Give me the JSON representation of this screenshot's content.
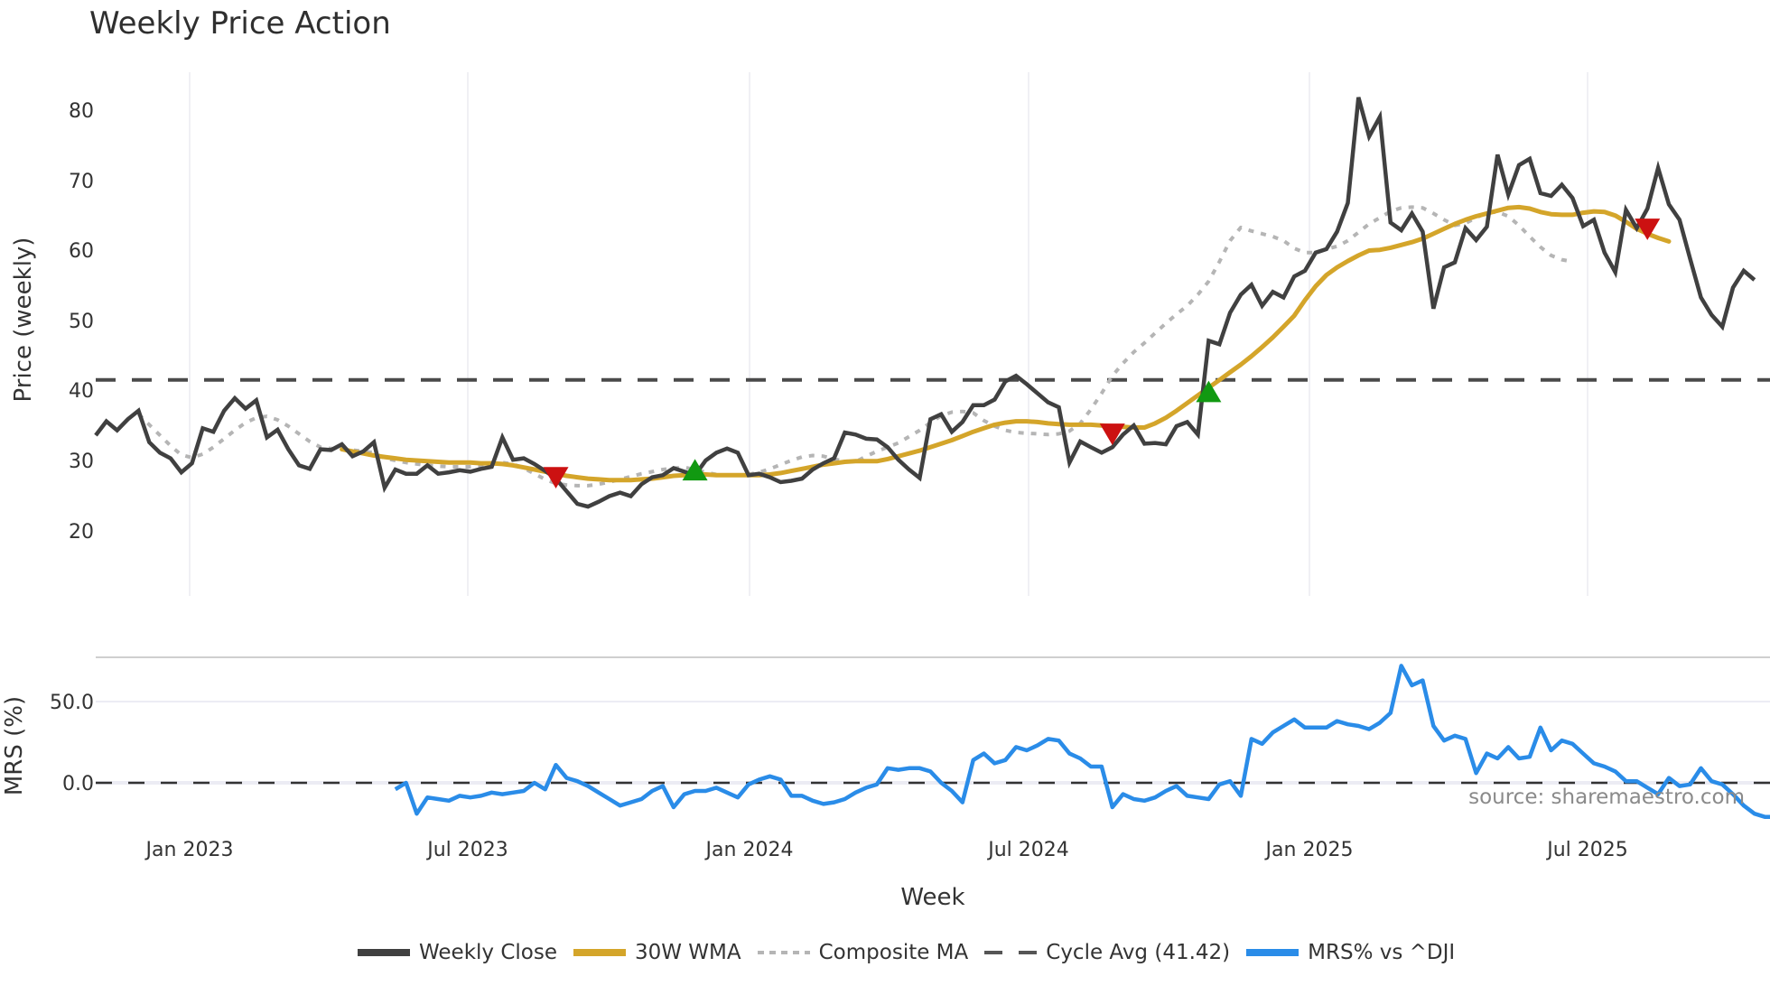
{
  "title": "Weekly Price Action",
  "chart_data": [
    {
      "type": "line",
      "panel": "price",
      "title": "Weekly Price Action",
      "xlabel": "Week",
      "ylabel": "Price (weekly)",
      "ylim": [
        20,
        85
      ],
      "yticks": [
        20,
        30,
        40,
        50,
        60,
        70,
        80
      ],
      "xticks": [
        "Jan 2023",
        "Jul 2023",
        "Jan 2024",
        "Jul 2024",
        "Jan 2025",
        "Jul 2025"
      ],
      "grid": "vertical",
      "x_start_week_index": 0,
      "x_note": "weekly index; index 9 ≈ Jan 2023, index 35 ≈ Jul 2023, index 61 ≈ Jan 2024, index 87 ≈ Jul 2024, index 113 ≈ Jan 2025, index 139 ≈ Jul 2025",
      "series": [
        {
          "name": "Weekly Close",
          "color": "#404040",
          "style": "solid",
          "start_index": 0,
          "values": [
            33.5,
            35.5,
            34.2,
            35.8,
            37,
            32.5,
            31,
            30.2,
            28.2,
            29.5,
            34.5,
            34,
            37,
            38.8,
            37.3,
            38.5,
            33.2,
            34.3,
            31.5,
            29.2,
            28.7,
            31.5,
            31.4,
            32.2,
            30.5,
            31.2,
            32.5,
            26,
            28.6,
            28,
            28,
            29.2,
            28,
            28.2,
            28.5,
            28.3,
            28.7,
            29,
            33.2,
            30,
            30.2,
            29.4,
            28.4,
            27.3,
            25.5,
            23.7,
            23.3,
            24,
            24.8,
            25.3,
            24.8,
            26.5,
            27.5,
            27.8,
            28.8,
            28.3,
            27.8,
            29.9,
            31,
            31.6,
            31,
            27.8,
            28,
            27.5,
            26.8,
            27,
            27.3,
            28.6,
            29.5,
            30.2,
            33.9,
            33.6,
            33,
            32.9,
            31.8,
            30,
            28.6,
            27.4,
            35.8,
            36.5,
            34,
            35.4,
            37.8,
            37.8,
            38.6,
            41.2,
            42,
            40.8,
            39.5,
            38.2,
            37.5,
            29.6,
            32.6,
            31.8,
            31,
            31.8,
            33.6,
            34.9,
            32.3,
            32.4,
            32.2,
            34.8,
            35.4,
            33.6,
            47,
            46.5,
            51,
            53.6,
            55,
            52,
            54,
            53.2,
            56.2,
            57,
            59.6,
            60.1,
            62.6,
            66.7,
            81.8,
            76.2,
            79,
            63.9,
            62.8,
            65.2,
            62.6,
            51.6,
            57.5,
            58.2,
            63.1,
            61.4,
            63.3,
            73.6,
            67.9,
            72.1,
            73,
            68.1,
            67.7,
            69.3,
            67.4,
            63.4,
            64.3,
            59.6,
            56.8,
            65.7,
            63.1,
            65.9,
            71.7,
            66.5,
            64.3,
            58.7,
            53.2,
            50.7,
            49,
            54.6,
            57,
            55.7
          ]
        },
        {
          "name": "30W WMA",
          "color": "#D4A52A",
          "style": "solid",
          "start_index": 23,
          "values": [
            31.5,
            31.2,
            30.9,
            30.6,
            30.4,
            30.2,
            30.0,
            29.9,
            29.8,
            29.7,
            29.6,
            29.6,
            29.6,
            29.5,
            29.5,
            29.4,
            29.2,
            28.9,
            28.6,
            28.3,
            28.0,
            27.7,
            27.5,
            27.3,
            27.2,
            27.1,
            27.1,
            27.1,
            27.2,
            27.3,
            27.5,
            27.7,
            27.8,
            27.9,
            27.9,
            27.8,
            27.8,
            27.8,
            27.8,
            27.8,
            27.9,
            28.1,
            28.4,
            28.7,
            29.0,
            29.3,
            29.5,
            29.7,
            29.8,
            29.8,
            29.8,
            30.1,
            30.5,
            30.9,
            31.3,
            31.8,
            32.3,
            32.8,
            33.4,
            34.0,
            34.5,
            35.0,
            35.3,
            35.5,
            35.5,
            35.4,
            35.2,
            35.1,
            35.0,
            35.0,
            35.0,
            34.9,
            34.8,
            34.7,
            34.6,
            34.6,
            35.2,
            36.0,
            37.0,
            38.1,
            39.2,
            40.3,
            41.4,
            42.5,
            43.6,
            44.8,
            46.1,
            47.5,
            49.0,
            50.6,
            52.8,
            54.8,
            56.4,
            57.5,
            58.4,
            59.2,
            59.9,
            60.0,
            60.3,
            60.7,
            61.1,
            61.6,
            62.3,
            63.0,
            63.7,
            64.3,
            64.8,
            65.2,
            65.6,
            66.0,
            66.1,
            65.9,
            65.4,
            65.1,
            65.0,
            65.0,
            65.3,
            65.5,
            65.4,
            64.9,
            64.0,
            63.0,
            62.3,
            61.7,
            61.2
          ]
        },
        {
          "name": "Composite MA",
          "color": "#B5B5B5",
          "style": "dotted",
          "start_index": 4,
          "values": [
            36.5,
            35.0,
            33.5,
            32.0,
            30.7,
            30.3,
            30.8,
            31.8,
            33.0,
            34.2,
            35.3,
            36.0,
            36.2,
            35.7,
            34.8,
            33.7,
            32.6,
            31.8,
            31.6,
            31.5,
            31.4,
            31.2,
            31.0,
            30.2,
            29.9,
            29.6,
            29.4,
            29.2,
            29.1,
            29.0,
            29.0,
            29.0,
            29.1,
            29.4,
            29.6,
            29.4,
            28.8,
            28.0,
            27.2,
            26.6,
            26.4,
            26.3,
            26.3,
            26.5,
            26.8,
            27.2,
            27.6,
            28.0,
            28.3,
            28.6,
            28.8,
            28.9,
            28.6,
            28.2,
            27.9,
            27.8,
            27.8,
            27.9,
            28.2,
            28.7,
            29.3,
            29.9,
            30.4,
            30.6,
            30.5,
            30.1,
            29.8,
            29.7,
            30.5,
            31.2,
            31.8,
            32.4,
            33.3,
            34.2,
            35.3,
            36.3,
            36.8,
            36.9,
            36.7,
            35.6,
            34.8,
            34.2,
            33.9,
            33.8,
            33.7,
            33.6,
            33.7,
            34.1,
            35.2,
            37.2,
            39.5,
            42.0,
            43.8,
            45.4,
            46.7,
            48.1,
            49.5,
            50.8,
            52.0,
            53.6,
            55.5,
            58.3,
            61.3,
            63.2,
            62.7,
            62.3,
            61.9,
            61.3,
            60.2,
            59.6,
            59.6,
            60.1,
            60.5,
            61.3,
            62.5,
            63.7,
            64.6,
            65.5,
            66.0,
            66.1,
            66.0,
            65.2,
            64.3,
            63.5,
            63.8,
            64.6,
            65.3,
            65.4,
            64.8,
            63.5,
            61.9,
            60.4,
            59.2,
            58.6,
            58.3
          ]
        },
        {
          "name": "Cycle Avg (41.42)",
          "color": "#4a4a4a",
          "style": "dashed",
          "constant": 41.42
        }
      ],
      "markers": [
        {
          "type": "sell",
          "shape": "triangle-down",
          "color": "#CC1111",
          "week_index": 43,
          "value": 27.7
        },
        {
          "type": "buy",
          "shape": "triangle-up",
          "color": "#119911",
          "week_index": 56,
          "value": 28.3
        },
        {
          "type": "sell",
          "shape": "triangle-down",
          "color": "#CC1111",
          "week_index": 95,
          "value": 33.9
        },
        {
          "type": "buy",
          "shape": "triangle-up",
          "color": "#119911",
          "week_index": 104,
          "value": 39.5
        },
        {
          "type": "sell",
          "shape": "triangle-down",
          "color": "#CC1111",
          "week_index": 145,
          "value": 63.2
        }
      ]
    },
    {
      "type": "line",
      "panel": "mrs",
      "xlabel": "Week",
      "ylabel": "MRS (%)",
      "yticks": [
        "0.0",
        "50.0"
      ],
      "ylim": [
        -30,
        75
      ],
      "reference_line": 0,
      "series": [
        {
          "name": "MRS% vs ^DJI",
          "color": "#2A8CE8",
          "style": "solid",
          "start_index": 28,
          "values": [
            -4,
            0,
            -19,
            -9,
            -10,
            -11,
            -8,
            -9,
            -8,
            -6,
            -7,
            -6,
            -5,
            0,
            -4,
            11,
            3,
            1,
            -2,
            -6,
            -10,
            -14,
            -12,
            -10,
            -5,
            -2,
            -15,
            -7,
            -5,
            -5,
            -3,
            -6,
            -9,
            -1,
            2,
            4,
            2,
            -8,
            -8,
            -11,
            -13,
            -12,
            -10,
            -6,
            -3,
            -1,
            9,
            8,
            9,
            9,
            7,
            0,
            -5,
            -12,
            14,
            18,
            12,
            14,
            22,
            20,
            23,
            27,
            26,
            18,
            15,
            10,
            10,
            -15,
            -7,
            -10,
            -11,
            -9,
            -5,
            -2,
            -8,
            -9,
            -10,
            -1,
            1,
            -8,
            27,
            24,
            31,
            35,
            39,
            34,
            34,
            34,
            38,
            36,
            35,
            33,
            37,
            43,
            72,
            60,
            63,
            35,
            26,
            29,
            27,
            6,
            18,
            15,
            22,
            15,
            16,
            34,
            20,
            26,
            24,
            18,
            12,
            10,
            7,
            1,
            1,
            -3,
            -7,
            3,
            -2,
            -1,
            9,
            1,
            -1,
            -7,
            -14,
            -19,
            -21,
            -21,
            -15,
            -14,
            -17
          ]
        }
      ]
    }
  ],
  "axes": {
    "price_ylabel": "Price (weekly)",
    "price_yticks": [
      "80",
      "70",
      "60",
      "50",
      "40",
      "30",
      "20"
    ],
    "mrs_ylabel": "MRS (%)",
    "mrs_yticks": [
      "50.0",
      "0.0"
    ],
    "xticks": [
      "Jan 2023",
      "Jul 2023",
      "Jan 2024",
      "Jul 2024",
      "Jan 2025",
      "Jul 2025"
    ],
    "xlabel": "Week"
  },
  "annotation": {
    "source": "source: sharemaestro.com"
  },
  "legend": [
    {
      "label": "Weekly Close",
      "color": "#404040",
      "style": "solid"
    },
    {
      "label": "30W WMA",
      "color": "#D4A52A",
      "style": "solid"
    },
    {
      "label": "Composite MA",
      "color": "#B5B5B5",
      "style": "dotted"
    },
    {
      "label": "Cycle Avg (41.42)",
      "color": "#555555",
      "style": "dashed"
    },
    {
      "label": "MRS% vs ^DJI",
      "color": "#2A8CE8",
      "style": "solid"
    }
  ]
}
